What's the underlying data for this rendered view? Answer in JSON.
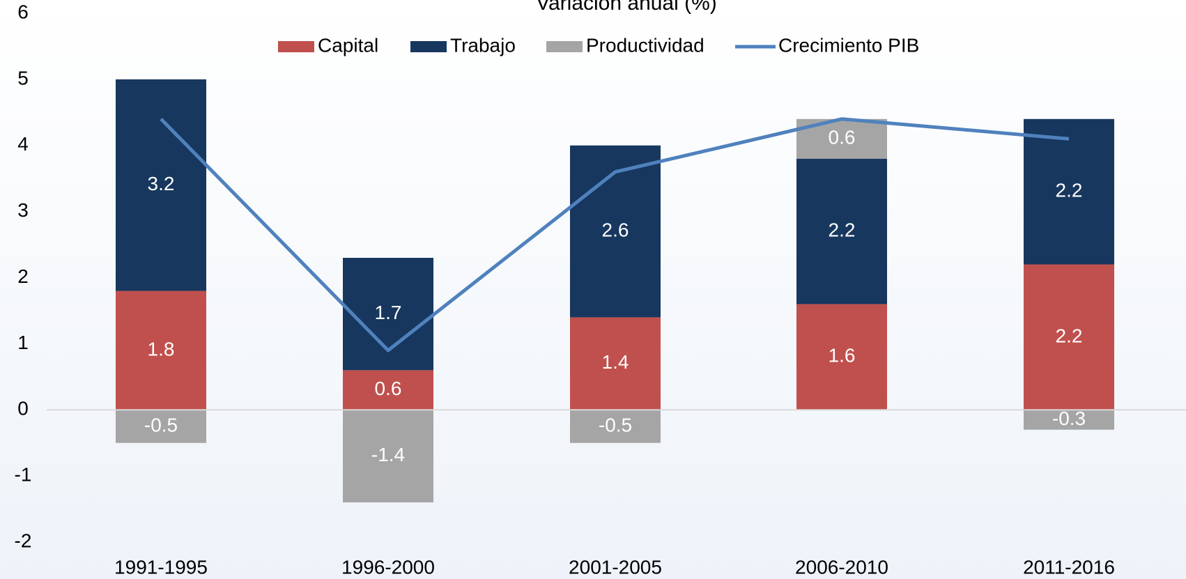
{
  "chart_data": {
    "type": "bar",
    "title": "Variación anual (%)",
    "categories": [
      "1991-1995",
      "1996-2000",
      "2001-2005",
      "2006-2010",
      "2011-2016"
    ],
    "series": [
      {
        "name": "Capital",
        "color": "#c0504d",
        "values": [
          1.8,
          0.6,
          1.4,
          1.6,
          2.2
        ]
      },
      {
        "name": "Trabajo",
        "color": "#17375e",
        "values": [
          3.2,
          1.7,
          2.6,
          2.2,
          2.2
        ]
      },
      {
        "name": "Productividad",
        "color": "#a5a5a5",
        "values": [
          -0.5,
          -1.4,
          -0.5,
          0.6,
          -0.3
        ]
      },
      {
        "name": "Crecimiento PIB",
        "color": "#4f81bd",
        "type": "line",
        "values": [
          4.4,
          0.9,
          3.6,
          4.4,
          4.1
        ]
      }
    ],
    "ylim": [
      -2,
      6
    ],
    "yticks": [
      -2,
      -1,
      0,
      1,
      2,
      3,
      4,
      5,
      6
    ],
    "stacked": true
  }
}
